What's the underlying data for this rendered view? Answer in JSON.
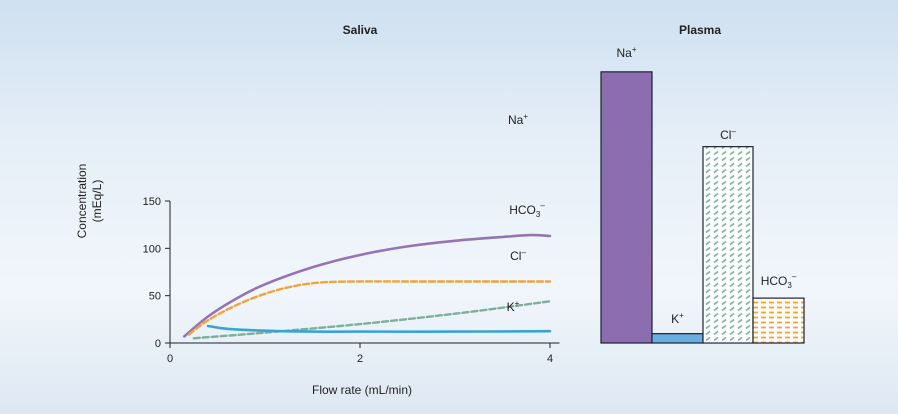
{
  "chart_data": [
    {
      "type": "line",
      "title": "Saliva",
      "xlabel": "Flow rate (mL/min)",
      "ylabel": "Concentration\n(mEq/L)",
      "xlim": [
        0,
        4.1
      ],
      "ylim": [
        0,
        150
      ],
      "xticks": [
        0,
        2,
        4
      ],
      "yticks": [
        0,
        50,
        100,
        150
      ],
      "grid": false,
      "series": [
        {
          "name": "Na+",
          "label_base": "Na",
          "label_sup": "+",
          "label_sub": "",
          "color": "#9474b4",
          "style": "solid",
          "x": [
            0.15,
            0.4,
            0.7,
            1.0,
            1.5,
            2.0,
            2.5,
            3.0,
            3.5,
            3.8,
            4.0
          ],
          "y": [
            7,
            28,
            47,
            62,
            80,
            93,
            102,
            108,
            112,
            114,
            113
          ]
        },
        {
          "name": "HCO3-",
          "label_base": "HCO",
          "label_sup": "–",
          "label_sub": "3",
          "color": "#f2a43a",
          "style": "dashed",
          "x": [
            0.2,
            0.4,
            0.7,
            1.0,
            1.3,
            1.6,
            2.0,
            2.5,
            3.0,
            3.5,
            4.0
          ],
          "y": [
            9,
            24,
            40,
            52,
            60,
            64,
            65,
            65,
            65,
            65,
            65
          ]
        },
        {
          "name": "Cl-",
          "label_base": "Cl",
          "label_sup": "–",
          "label_sub": "",
          "color": "#7fae9a",
          "style": "dashed",
          "x": [
            0.25,
            1.0,
            2.0,
            3.0,
            4.0
          ],
          "y": [
            5,
            11,
            20,
            31,
            44
          ]
        },
        {
          "name": "K+",
          "label_base": "K",
          "label_sup": "+",
          "label_sub": "",
          "color": "#3aa3d3",
          "style": "solid",
          "x": [
            0.4,
            0.6,
            1.0,
            1.5,
            2.0,
            3.0,
            4.0
          ],
          "y": [
            18,
            15,
            13,
            12,
            12,
            12,
            12.5
          ]
        }
      ]
    },
    {
      "type": "bar",
      "title": "Plasma",
      "categories": [
        "Na+",
        "K+",
        "Cl-",
        "HCO3-"
      ],
      "category_labels": [
        {
          "base": "Na",
          "sup": "+",
          "sub": ""
        },
        {
          "base": "K",
          "sup": "+",
          "sub": ""
        },
        {
          "base": "Cl",
          "sup": "–",
          "sub": ""
        },
        {
          "base": "HCO",
          "sup": "–",
          "sub": "3"
        }
      ],
      "values": [
        145,
        5,
        105,
        24
      ],
      "ylim": [
        0,
        150
      ],
      "colors": [
        "#8b6db0",
        "#6aaee0",
        "#7fae9a",
        "#f2a43a"
      ],
      "patterns": [
        "solid",
        "solid",
        "dashed-green",
        "dashed-orange"
      ]
    }
  ]
}
